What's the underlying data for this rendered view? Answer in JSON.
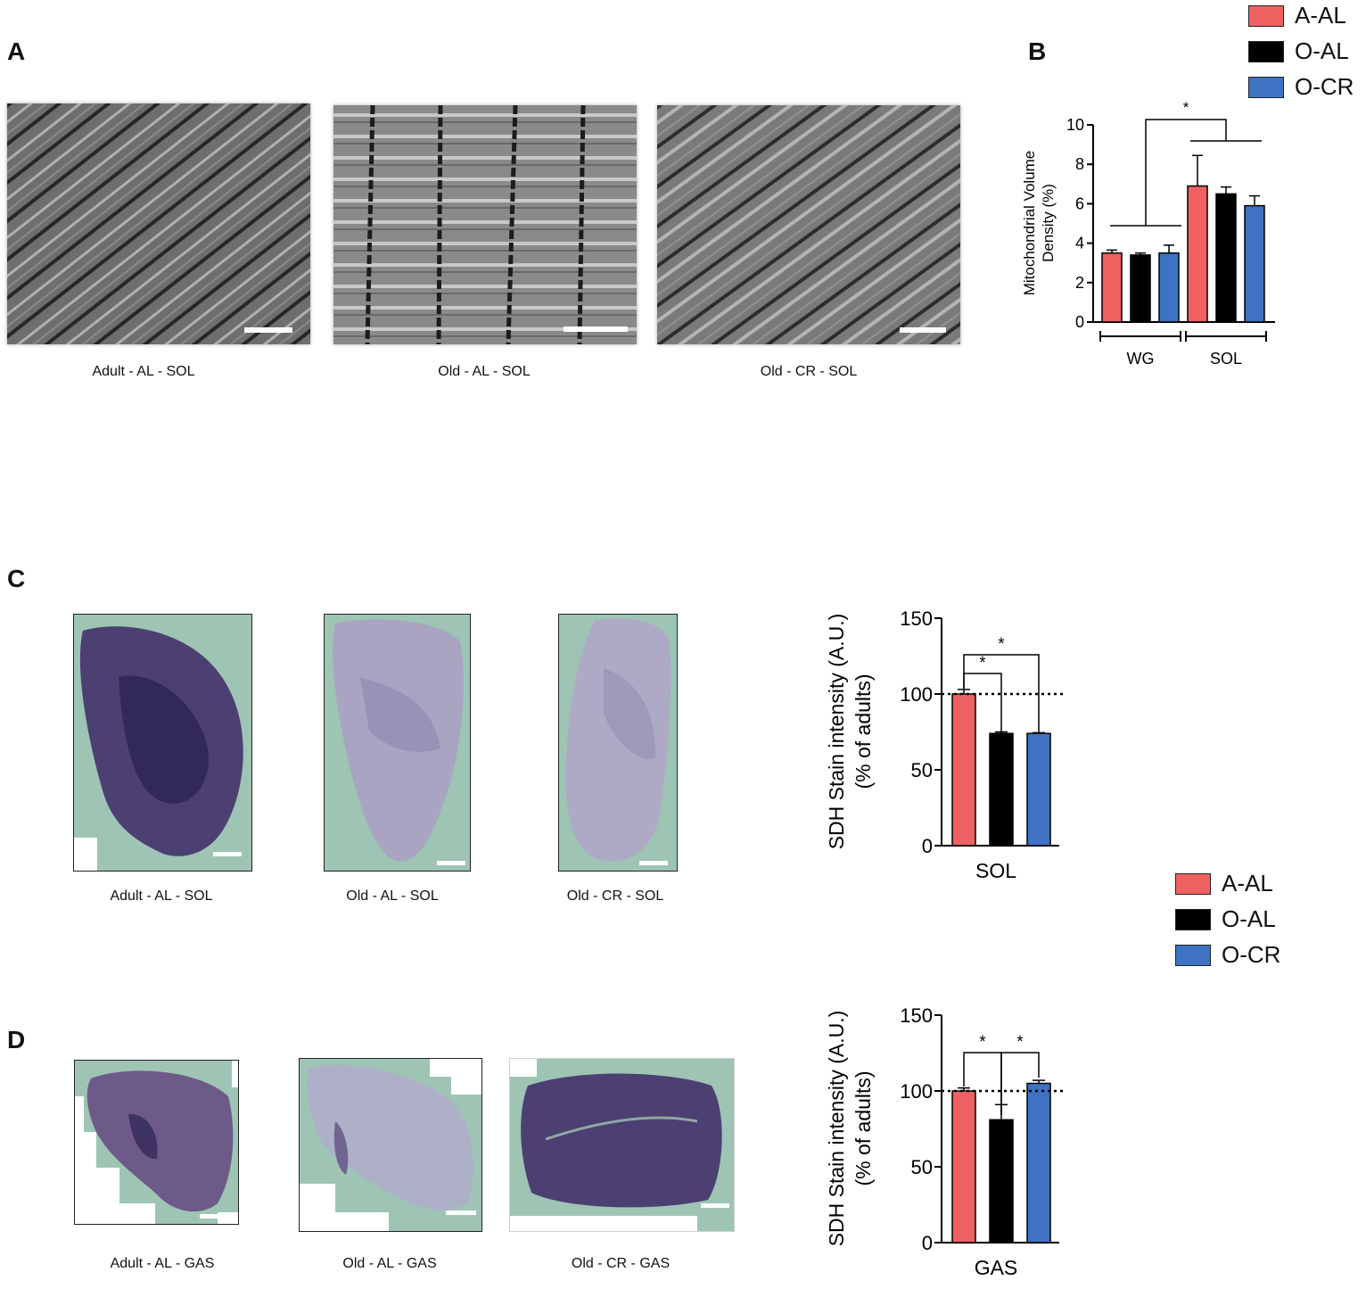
{
  "panels": {
    "A": "A",
    "B": "B",
    "C": "C",
    "D": "D"
  },
  "legend": [
    {
      "label": "A-AL",
      "color": "#f06161"
    },
    {
      "label": "O-AL",
      "color": "#000000"
    },
    {
      "label": "O-CR",
      "color": "#3d73c2"
    }
  ],
  "panel_a": {
    "captions": [
      "Adult - AL - SOL",
      "Old - AL - SOL",
      "Old - CR - SOL"
    ]
  },
  "panel_c": {
    "captions": [
      "Adult - AL - SOL",
      "Old - AL - SOL",
      "Old - CR - SOL"
    ]
  },
  "panel_d": {
    "captions": [
      "Adult - AL - GAS",
      "Old - AL - GAS",
      "Old - CR - GAS"
    ]
  },
  "chart_data": [
    {
      "id": "B",
      "type": "bar",
      "ylabel": "Mitochondrial Volume Density (%)",
      "ylabel_lines": [
        "Mitochondrial Volume",
        "Density (%)"
      ],
      "ylim": [
        0,
        10
      ],
      "yticks": [
        0,
        2,
        4,
        6,
        8,
        10
      ],
      "categories": [
        "WG",
        "SOL"
      ],
      "series": [
        {
          "name": "A-AL",
          "color": "#f06161",
          "values": [
            3.5,
            6.9
          ],
          "errors": [
            0.15,
            1.55
          ]
        },
        {
          "name": "O-AL",
          "color": "#000000",
          "values": [
            3.4,
            6.5
          ],
          "errors": [
            0.1,
            0.35
          ]
        },
        {
          "name": "O-CR",
          "color": "#3d73c2",
          "values": [
            3.5,
            5.9
          ],
          "errors": [
            0.4,
            0.5
          ]
        }
      ],
      "significance": [
        "*"
      ]
    },
    {
      "id": "C",
      "type": "bar",
      "ylabel_lines": [
        "SDH Stain intensity (A.U.)",
        "(% of adults)"
      ],
      "ylim": [
        0,
        150
      ],
      "yticks": [
        0,
        50,
        100,
        150
      ],
      "reference_line": 100,
      "categories": [
        "SOL"
      ],
      "series": [
        {
          "name": "A-AL",
          "color": "#f06161",
          "values": [
            100
          ],
          "errors": [
            3
          ]
        },
        {
          "name": "O-AL",
          "color": "#000000",
          "values": [
            74
          ],
          "errors": [
            1
          ]
        },
        {
          "name": "O-CR",
          "color": "#3d73c2",
          "values": [
            74
          ],
          "errors": [
            0.5
          ]
        }
      ],
      "significance": [
        "*",
        "*"
      ]
    },
    {
      "id": "D",
      "type": "bar",
      "ylabel_lines": [
        "SDH Stain intensity (A.U.)",
        "(% of adults)"
      ],
      "ylim": [
        0,
        150
      ],
      "yticks": [
        0,
        50,
        100,
        150
      ],
      "reference_line": 100,
      "categories": [
        "GAS"
      ],
      "series": [
        {
          "name": "A-AL",
          "color": "#f06161",
          "values": [
            100
          ],
          "errors": [
            2
          ]
        },
        {
          "name": "O-AL",
          "color": "#000000",
          "values": [
            81
          ],
          "errors": [
            10
          ]
        },
        {
          "name": "O-CR",
          "color": "#3d73c2",
          "values": [
            105
          ],
          "errors": [
            2
          ]
        }
      ],
      "significance": [
        "*",
        "*"
      ]
    }
  ]
}
